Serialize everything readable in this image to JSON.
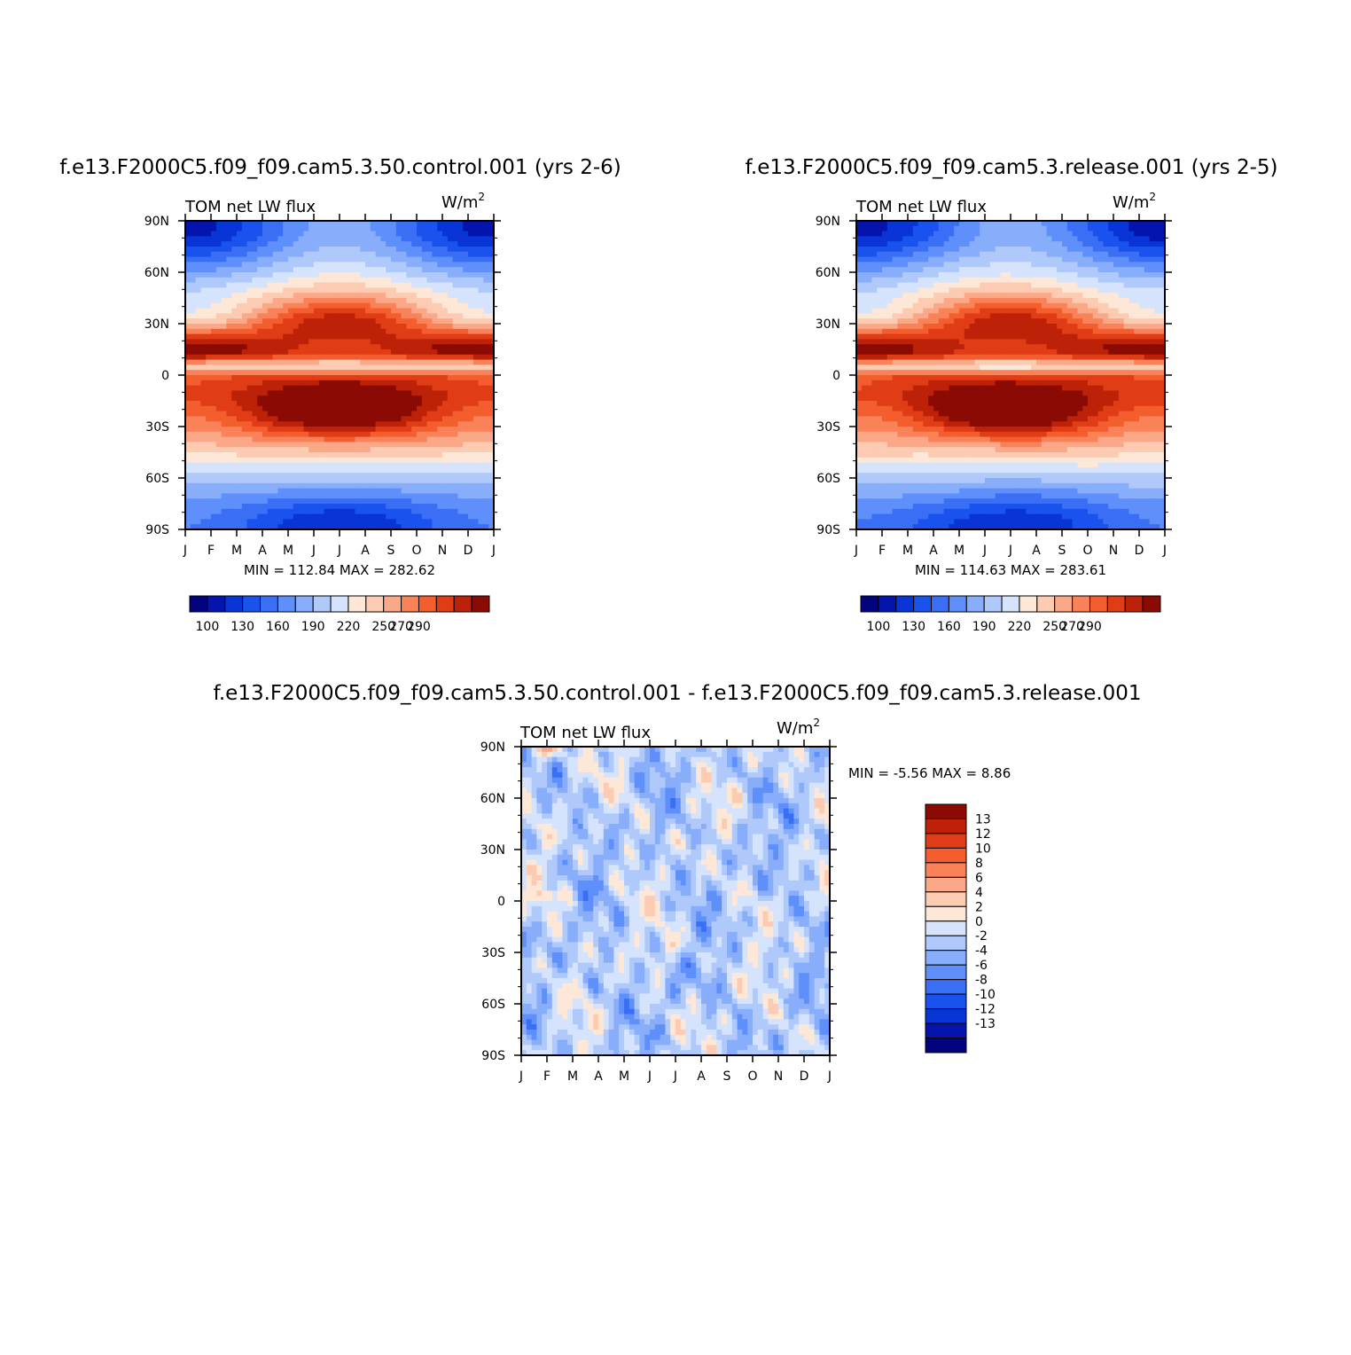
{
  "page_title": "",
  "panels": [
    {
      "title": "f.e13.F2000C5.f09_f09.cam5.3.50.control.001 (yrs 2-6)",
      "field_label": "TOM net LW flux",
      "units_base": "W/m",
      "units_sup": "2",
      "stats": "MIN = 112.84 MAX = 282.62"
    },
    {
      "title": "f.e13.F2000C5.f09_f09.cam5.3.release.001 (yrs 2-5)",
      "field_label": "TOM net LW flux",
      "units_base": "W/m",
      "units_sup": "2",
      "stats": "MIN = 114.63 MAX = 283.61"
    },
    {
      "title": "f.e13.F2000C5.f09_f09.cam5.3.50.control.001 - f.e13.F2000C5.f09_f09.cam5.3.release.001",
      "field_label": "TOM net LW flux",
      "units_base": "W/m",
      "units_sup": "2",
      "stats": "MIN = -5.56 MAX = 8.86"
    }
  ],
  "chart_data": [
    {
      "type": "heatmap",
      "title": "f.e13.F2000C5.f09_f09.cam5.3.50.control.001 (yrs 2-6)",
      "subtitle": "TOM net LW flux",
      "units": "W/m2",
      "x_tick_labels": [
        "J",
        "F",
        "M",
        "A",
        "M",
        "J",
        "J",
        "A",
        "S",
        "O",
        "N",
        "D",
        "J"
      ],
      "y_tick_labels": [
        "90N",
        "60N",
        "30N",
        "0",
        "30S",
        "60S",
        "90S"
      ],
      "ylim": [
        -90,
        90
      ],
      "levels": [
        100,
        110,
        120,
        130,
        140,
        150,
        160,
        170,
        180,
        190,
        200,
        210,
        220,
        230,
        240,
        250,
        260,
        270,
        280,
        290
      ],
      "colorbar_labels": [
        "100",
        "130",
        "160",
        "190",
        "220",
        "250",
        "270",
        "290"
      ],
      "min": 112.84,
      "max": 282.62
    },
    {
      "type": "heatmap",
      "title": "f.e13.F2000C5.f09_f09.cam5.3.release.001 (yrs 2-5)",
      "subtitle": "TOM net LW flux",
      "units": "W/m2",
      "x_tick_labels": [
        "J",
        "F",
        "M",
        "A",
        "M",
        "J",
        "J",
        "A",
        "S",
        "O",
        "N",
        "D",
        "J"
      ],
      "y_tick_labels": [
        "90N",
        "60N",
        "30N",
        "0",
        "30S",
        "60S",
        "90S"
      ],
      "ylim": [
        -90,
        90
      ],
      "levels": [
        100,
        110,
        120,
        130,
        140,
        150,
        160,
        170,
        180,
        190,
        200,
        210,
        220,
        230,
        240,
        250,
        260,
        270,
        280,
        290
      ],
      "colorbar_labels": [
        "100",
        "130",
        "160",
        "190",
        "220",
        "250",
        "270",
        "290"
      ],
      "min": 114.63,
      "max": 283.61
    },
    {
      "type": "heatmap",
      "title": "f.e13.F2000C5.f09_f09.cam5.3.50.control.001 - f.e13.F2000C5.f09_f09.cam5.3.release.001",
      "subtitle": "TOM net LW flux",
      "units": "W/m2",
      "x_tick_labels": [
        "J",
        "F",
        "M",
        "A",
        "M",
        "J",
        "J",
        "A",
        "S",
        "O",
        "N",
        "D",
        "J"
      ],
      "y_tick_labels": [
        "90N",
        "60N",
        "30N",
        "0",
        "30S",
        "60S",
        "90S"
      ],
      "ylim": [
        -90,
        90
      ],
      "levels": [
        -13,
        -12,
        -10,
        -8,
        -6,
        -4,
        -2,
        0,
        2,
        4,
        6,
        8,
        10,
        12,
        13
      ],
      "colorbar_labels": [
        "13",
        "12",
        "10",
        "8",
        "6",
        "4",
        "2",
        "0",
        "-2",
        "-4",
        "-6",
        "-8",
        "-10",
        "-12",
        "-13"
      ],
      "min": -5.56,
      "max": 8.86
    }
  ],
  "colors": {
    "abs_palette": [
      "#02037e",
      "#0414ad",
      "#0935d6",
      "#1a52ee",
      "#3a6ff5",
      "#5f8ffa",
      "#88aefb",
      "#b0c9fb",
      "#d5e3fc",
      "#fde7d6",
      "#fccbb2",
      "#fba888",
      "#f98258",
      "#f45d2e",
      "#e03d16",
      "#bd2209",
      "#8c0a04"
    ],
    "diff_palette": [
      "#8c0a04",
      "#bd2209",
      "#e03d16",
      "#f45d2e",
      "#f98258",
      "#fba888",
      "#fccbb2",
      "#fde7d6",
      "#d5e3fc",
      "#b0c9fb",
      "#88aefb",
      "#5f8ffa",
      "#3a6ff5",
      "#1a52ee",
      "#0935d6",
      "#0414ad",
      "#02037e"
    ]
  }
}
